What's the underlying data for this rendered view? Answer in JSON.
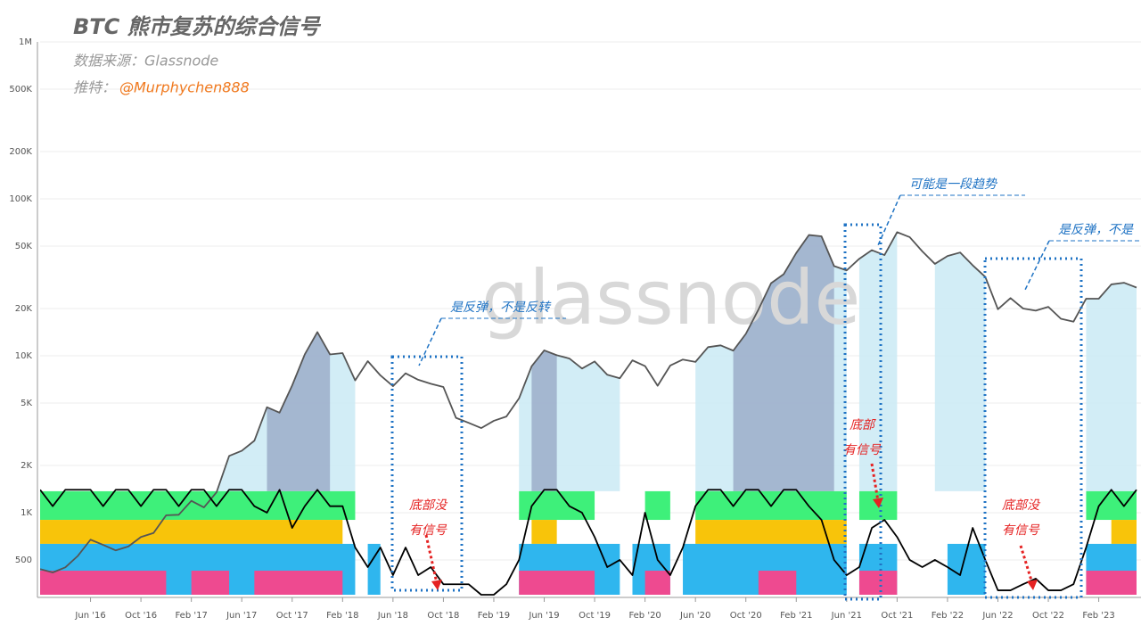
{
  "chart_data": {
    "type": "line",
    "title": "BTC 熊市复苏的综合信号",
    "source": "数据来源：Glassnode",
    "twitter_label": "推特：",
    "twitter_handle": "@Murphychen888",
    "watermark": "glassnode",
    "log_scale": true,
    "grid": true,
    "ylim": [
      300,
      1000000
    ],
    "yticks": [
      500,
      {
        "value": 1000,
        "label": "1K"
      },
      {
        "value": 2000,
        "label": "2K"
      },
      {
        "value": 5000,
        "label": "5K"
      },
      {
        "value": 10000,
        "label": "10K"
      },
      {
        "value": 20000,
        "label": "20K"
      },
      {
        "value": 50000,
        "label": "50K"
      },
      {
        "value": 100000,
        "label": "100K"
      },
      {
        "value": 200000,
        "label": "200K"
      },
      {
        "value": 500000,
        "label": "500K"
      },
      {
        "value": 1000000,
        "label": "1M"
      }
    ],
    "xlim": [
      "2016-02",
      "2023-05"
    ],
    "xticks": [
      {
        "value": "2016-06",
        "label": "Jun '16"
      },
      {
        "value": "2016-10",
        "label": "Oct '16"
      },
      {
        "value": "2017-02",
        "label": "Feb '17"
      },
      {
        "value": "2017-06",
        "label": "Jun '17"
      },
      {
        "value": "2017-10",
        "label": "Oct '17"
      },
      {
        "value": "2018-02",
        "label": "Feb '18"
      },
      {
        "value": "2018-06",
        "label": "Jun '18"
      },
      {
        "value": "2018-10",
        "label": "Oct '18"
      },
      {
        "value": "2019-02",
        "label": "Feb '19"
      },
      {
        "value": "2019-06",
        "label": "Jun '19"
      },
      {
        "value": "2019-10",
        "label": "Oct '19"
      },
      {
        "value": "2020-02",
        "label": "Feb '20"
      },
      {
        "value": "2020-06",
        "label": "Jun '20"
      },
      {
        "value": "2020-10",
        "label": "Oct '20"
      },
      {
        "value": "2021-02",
        "label": "Feb '21"
      },
      {
        "value": "2021-06",
        "label": "Jun '21"
      },
      {
        "value": "2021-10",
        "label": "Oct '21"
      },
      {
        "value": "2022-02",
        "label": "Feb '22"
      },
      {
        "value": "2022-06",
        "label": "Jun '22"
      },
      {
        "value": "2022-10",
        "label": "Oct '22"
      },
      {
        "value": "2023-02",
        "label": "Feb '23"
      }
    ],
    "x": [
      "2016-02",
      "2016-03",
      "2016-04",
      "2016-05",
      "2016-06",
      "2016-07",
      "2016-08",
      "2016-09",
      "2016-10",
      "2016-11",
      "2016-12",
      "2017-01",
      "2017-02",
      "2017-03",
      "2017-04",
      "2017-05",
      "2017-06",
      "2017-07",
      "2017-08",
      "2017-09",
      "2017-10",
      "2017-11",
      "2017-12",
      "2018-01",
      "2018-02",
      "2018-03",
      "2018-04",
      "2018-05",
      "2018-06",
      "2018-07",
      "2018-08",
      "2018-09",
      "2018-10",
      "2018-11",
      "2018-12",
      "2019-01",
      "2019-02",
      "2019-03",
      "2019-04",
      "2019-05",
      "2019-06",
      "2019-07",
      "2019-08",
      "2019-09",
      "2019-10",
      "2019-11",
      "2019-12",
      "2020-01",
      "2020-02",
      "2020-03",
      "2020-04",
      "2020-05",
      "2020-06",
      "2020-07",
      "2020-08",
      "2020-09",
      "2020-10",
      "2020-11",
      "2020-12",
      "2021-01",
      "2021-02",
      "2021-03",
      "2021-04",
      "2021-05",
      "2021-06",
      "2021-07",
      "2021-08",
      "2021-09",
      "2021-10",
      "2021-11",
      "2021-12",
      "2022-01",
      "2022-02",
      "2022-03",
      "2022-04",
      "2022-05",
      "2022-06",
      "2022-07",
      "2022-08",
      "2022-09",
      "2022-10",
      "2022-11",
      "2022-12",
      "2023-01",
      "2023-02",
      "2023-03",
      "2023-04",
      "2023-05"
    ],
    "series": [
      {
        "color": "#555555",
        "values": [
          437,
          416,
          448,
          531,
          673,
          624,
          575,
          609,
          700,
          742,
          963,
          970,
          1190,
          1080,
          1350,
          2300,
          2480,
          2875,
          4700,
          4340,
          6470,
          10200,
          14150,
          10200,
          10400,
          6970,
          9240,
          7500,
          6400,
          7730,
          7030,
          6630,
          6320,
          4020,
          3740,
          3460,
          3850,
          4100,
          5350,
          8570,
          10820,
          10080,
          9600,
          8290,
          9200,
          7570,
          7190,
          9350,
          8600,
          6440,
          8660,
          9460,
          9140,
          11350,
          11650,
          10780,
          13800,
          19700,
          29000,
          33100,
          45200,
          58800,
          57700,
          37300,
          35000,
          41500,
          47100,
          43800,
          61300,
          57000,
          46300,
          38500,
          43200,
          45500,
          37700,
          31800,
          19800,
          23300,
          20000,
          19400,
          20500,
          17200,
          16500,
          23100,
          23100,
          28500,
          29200,
          27200
        ]
      },
      {
        "color": "#000000",
        "values": [
          1400,
          1100,
          1400,
          1400,
          1400,
          1100,
          1400,
          1400,
          1100,
          1400,
          1400,
          1100,
          1400,
          1400,
          1100,
          1400,
          1400,
          1100,
          1000,
          1400,
          800,
          1100,
          1400,
          1100,
          1100,
          600,
          450,
          600,
          400,
          600,
          400,
          450,
          350,
          350,
          350,
          300,
          300,
          350,
          500,
          1100,
          1400,
          1400,
          1100,
          1000,
          700,
          450,
          500,
          400,
          1000,
          500,
          400,
          600,
          1100,
          1400,
          1400,
          1100,
          1400,
          1400,
          1100,
          1400,
          1400,
          1100,
          900,
          500,
          400,
          450,
          800,
          900,
          700,
          500,
          450,
          500,
          450,
          400,
          800,
          500,
          320,
          320,
          350,
          380,
          320,
          320,
          350,
          600,
          1100,
          1400,
          1100,
          1400
        ]
      }
    ],
    "highlights": [
      {
        "x": [
          "2017-04",
          "2018-03"
        ],
        "color": "#cdebf5"
      },
      {
        "x": [
          "2019-04",
          "2019-12"
        ],
        "color": "#cdebf5"
      },
      {
        "x": [
          "2020-06",
          "2021-06"
        ],
        "color": "#cdebf5"
      },
      {
        "x": [
          "2021-07",
          "2021-10"
        ],
        "color": "#cdebf5"
      },
      {
        "x": [
          "2022-01",
          "2022-05"
        ],
        "color": "#cdebf5"
      },
      {
        "x": [
          "2023-01",
          "2023-05"
        ],
        "color": "#cdebf5"
      },
      {
        "x": [
          "2017-08",
          "2018-01"
        ],
        "color": "#9fb0cc"
      },
      {
        "x": [
          "2019-05",
          "2019-07"
        ],
        "color": "#9fb0cc"
      },
      {
        "x": [
          "2020-09",
          "2021-05"
        ],
        "color": "#9fb0cc"
      }
    ],
    "bands": [
      {
        "x": [
          "2016-02",
          "2018-03"
        ],
        "range": [
          900,
          1370
        ],
        "color": "#3ef07a"
      },
      {
        "x": [
          "2019-04",
          "2019-10"
        ],
        "range": [
          900,
          1370
        ],
        "color": "#3ef07a"
      },
      {
        "x": [
          "2020-02",
          "2020-04"
        ],
        "range": [
          900,
          1370
        ],
        "color": "#3ef07a"
      },
      {
        "x": [
          "2020-06",
          "2021-06"
        ],
        "range": [
          900,
          1370
        ],
        "color": "#3ef07a"
      },
      {
        "x": [
          "2021-07",
          "2021-10"
        ],
        "range": [
          900,
          1370
        ],
        "color": "#3ef07a"
      },
      {
        "x": [
          "2023-01",
          "2023-05"
        ],
        "range": [
          900,
          1370
        ],
        "color": "#3ef07a"
      },
      {
        "x": [
          "2016-02",
          "2018-02"
        ],
        "range": [
          633,
          900
        ],
        "color": "#f8c40a"
      },
      {
        "x": [
          "2019-05",
          "2019-07"
        ],
        "range": [
          633,
          900
        ],
        "color": "#f8c40a"
      },
      {
        "x": [
          "2020-06",
          "2021-06"
        ],
        "range": [
          633,
          900
        ],
        "color": "#f8c40a"
      },
      {
        "x": [
          "2023-03",
          "2023-05"
        ],
        "range": [
          633,
          900
        ],
        "color": "#f8c40a"
      },
      {
        "x": [
          "2016-02",
          "2018-03"
        ],
        "range": [
          300,
          633
        ],
        "color": "#2fb6ee"
      },
      {
        "x": [
          "2018-04",
          "2018-05"
        ],
        "range": [
          300,
          633
        ],
        "color": "#2fb6ee"
      },
      {
        "x": [
          "2019-04",
          "2019-12"
        ],
        "range": [
          300,
          633
        ],
        "color": "#2fb6ee"
      },
      {
        "x": [
          "2020-01",
          "2020-04"
        ],
        "range": [
          300,
          633
        ],
        "color": "#2fb6ee"
      },
      {
        "x": [
          "2020-05",
          "2021-06"
        ],
        "range": [
          300,
          633
        ],
        "color": "#2fb6ee"
      },
      {
        "x": [
          "2021-07",
          "2021-10"
        ],
        "range": [
          300,
          633
        ],
        "color": "#2fb6ee"
      },
      {
        "x": [
          "2022-02",
          "2022-05"
        ],
        "range": [
          300,
          633
        ],
        "color": "#2fb6ee"
      },
      {
        "x": [
          "2023-01",
          "2023-05"
        ],
        "range": [
          300,
          633
        ],
        "color": "#2fb6ee"
      },
      {
        "x": [
          "2016-02",
          "2016-12"
        ],
        "range": [
          300,
          427
        ],
        "color": "#ee4a90"
      },
      {
        "x": [
          "2017-02",
          "2017-05"
        ],
        "range": [
          300,
          427
        ],
        "color": "#ee4a90"
      },
      {
        "x": [
          "2017-07",
          "2018-02"
        ],
        "range": [
          300,
          427
        ],
        "color": "#ee4a90"
      },
      {
        "x": [
          "2019-04",
          "2019-10"
        ],
        "range": [
          300,
          427
        ],
        "color": "#ee4a90"
      },
      {
        "x": [
          "2020-02",
          "2020-04"
        ],
        "range": [
          300,
          427
        ],
        "color": "#ee4a90"
      },
      {
        "x": [
          "2020-11",
          "2021-02"
        ],
        "range": [
          300,
          427
        ],
        "color": "#ee4a90"
      },
      {
        "x": [
          "2021-07",
          "2021-10"
        ],
        "range": [
          300,
          427
        ],
        "color": "#ee4a90"
      },
      {
        "x": [
          "2023-01",
          "2023-05"
        ],
        "range": [
          300,
          427
        ],
        "color": "#ee4a90"
      }
    ],
    "annotations": [
      "是反弹，不是反转",
      "可能是一段趋势",
      "是反弹，不是"
    ],
    "bottom_notes": [
      [
        "底部没",
        "有信号"
      ],
      [
        "底部",
        "有信号"
      ],
      [
        "底部没",
        "有信号"
      ]
    ]
  }
}
